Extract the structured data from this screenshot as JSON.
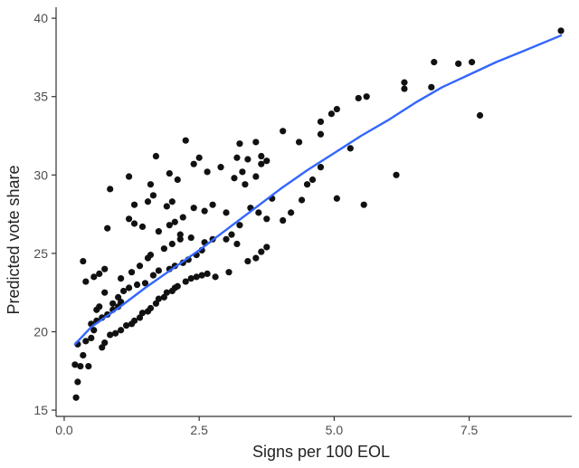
{
  "chart_data": {
    "type": "scatter",
    "xlabel": "Signs per 100 EOL",
    "ylabel": "Predicted vote share",
    "xlim": [
      -0.15,
      9.4
    ],
    "ylim": [
      14.6,
      40.7
    ],
    "x_ticks": [
      0.0,
      2.5,
      5.0,
      7.5
    ],
    "x_tick_labels": [
      "0.0",
      "2.5",
      "5.0",
      "7.5"
    ],
    "y_ticks": [
      15,
      20,
      25,
      30,
      35,
      40
    ],
    "y_tick_labels": [
      "15",
      "20",
      "25",
      "30",
      "35",
      "40"
    ],
    "grid": false,
    "legend": "none",
    "colors": {
      "points": "#111111",
      "trend": "#3366ff",
      "axis": "#333333"
    },
    "points": [
      [
        0.22,
        15.8
      ],
      [
        0.25,
        16.8
      ],
      [
        0.2,
        17.9
      ],
      [
        0.3,
        17.8
      ],
      [
        0.45,
        17.8
      ],
      [
        0.35,
        18.5
      ],
      [
        0.25,
        19.2
      ],
      [
        0.4,
        19.4
      ],
      [
        0.5,
        19.6
      ],
      [
        0.55,
        20.1
      ],
      [
        0.5,
        20.5
      ],
      [
        0.6,
        20.7
      ],
      [
        0.7,
        20.9
      ],
      [
        0.8,
        21.1
      ],
      [
        0.9,
        21.4
      ],
      [
        1.0,
        21.6
      ],
      [
        1.05,
        21.9
      ],
      [
        0.7,
        19.0
      ],
      [
        0.75,
        19.3
      ],
      [
        0.85,
        19.8
      ],
      [
        0.95,
        19.9
      ],
      [
        1.05,
        20.1
      ],
      [
        1.15,
        20.4
      ],
      [
        1.25,
        20.5
      ],
      [
        1.3,
        20.7
      ],
      [
        1.4,
        20.9
      ],
      [
        1.45,
        21.2
      ],
      [
        1.55,
        21.3
      ],
      [
        1.6,
        21.5
      ],
      [
        1.7,
        21.8
      ],
      [
        1.75,
        22.1
      ],
      [
        1.85,
        22.2
      ],
      [
        1.9,
        22.5
      ],
      [
        2.0,
        22.6
      ],
      [
        2.05,
        22.8
      ],
      [
        2.1,
        22.9
      ],
      [
        2.25,
        23.2
      ],
      [
        2.35,
        23.4
      ],
      [
        2.45,
        23.5
      ],
      [
        2.55,
        23.6
      ],
      [
        2.65,
        23.7
      ],
      [
        2.8,
        23.5
      ],
      [
        3.05,
        23.8
      ],
      [
        3.4,
        24.5
      ],
      [
        3.55,
        24.7
      ],
      [
        3.65,
        25.1
      ],
      [
        3.75,
        25.4
      ],
      [
        3.2,
        25.6
      ],
      [
        3.0,
        25.9
      ],
      [
        0.6,
        21.4
      ],
      [
        0.65,
        21.6
      ],
      [
        0.75,
        22.5
      ],
      [
        0.9,
        21.8
      ],
      [
        1.0,
        22.2
      ],
      [
        1.1,
        22.6
      ],
      [
        1.2,
        22.8
      ],
      [
        1.35,
        23.0
      ],
      [
        1.5,
        23.1
      ],
      [
        1.65,
        23.6
      ],
      [
        1.75,
        23.9
      ],
      [
        1.95,
        24.0
      ],
      [
        2.05,
        24.2
      ],
      [
        2.2,
        24.4
      ],
      [
        2.3,
        24.6
      ],
      [
        2.45,
        24.9
      ],
      [
        2.55,
        25.2
      ],
      [
        2.6,
        25.7
      ],
      [
        2.75,
        25.9
      ],
      [
        0.4,
        23.2
      ],
      [
        0.55,
        23.5
      ],
      [
        0.65,
        23.7
      ],
      [
        0.75,
        24.0
      ],
      [
        0.35,
        24.5
      ],
      [
        1.05,
        23.4
      ],
      [
        1.25,
        23.8
      ],
      [
        1.4,
        24.2
      ],
      [
        1.55,
        24.7
      ],
      [
        1.6,
        24.9
      ],
      [
        1.85,
        25.3
      ],
      [
        2.0,
        25.6
      ],
      [
        2.15,
        25.9
      ],
      [
        2.35,
        26.0
      ],
      [
        2.15,
        26.2
      ],
      [
        1.75,
        26.4
      ],
      [
        1.95,
        26.8
      ],
      [
        2.05,
        27.0
      ],
      [
        2.2,
        27.3
      ],
      [
        1.45,
        26.7
      ],
      [
        1.3,
        26.9
      ],
      [
        1.2,
        27.2
      ],
      [
        0.8,
        26.6
      ],
      [
        1.3,
        28.1
      ],
      [
        1.55,
        28.3
      ],
      [
        1.65,
        28.7
      ],
      [
        1.9,
        28.0
      ],
      [
        2.0,
        28.3
      ],
      [
        2.4,
        27.9
      ],
      [
        2.6,
        27.7
      ],
      [
        2.75,
        28.1
      ],
      [
        3.0,
        27.6
      ],
      [
        3.1,
        26.2
      ],
      [
        3.25,
        26.8
      ],
      [
        3.45,
        27.9
      ],
      [
        3.6,
        27.6
      ],
      [
        3.75,
        27.2
      ],
      [
        3.85,
        28.5
      ],
      [
        4.05,
        27.1
      ],
      [
        4.2,
        27.6
      ],
      [
        4.4,
        28.4
      ],
      [
        4.5,
        29.4
      ],
      [
        4.6,
        29.7
      ],
      [
        4.75,
        30.5
      ],
      [
        3.35,
        29.4
      ],
      [
        3.55,
        29.9
      ],
      [
        3.65,
        30.7
      ],
      [
        3.15,
        29.8
      ],
      [
        3.3,
        30.2
      ],
      [
        3.2,
        31.1
      ],
      [
        3.4,
        31.0
      ],
      [
        2.9,
        30.5
      ],
      [
        2.65,
        30.2
      ],
      [
        2.4,
        30.7
      ],
      [
        2.1,
        29.7
      ],
      [
        1.95,
        30.1
      ],
      [
        1.6,
        29.4
      ],
      [
        1.2,
        29.9
      ],
      [
        0.85,
        29.1
      ],
      [
        1.7,
        31.2
      ],
      [
        2.25,
        32.2
      ],
      [
        2.5,
        31.1
      ],
      [
        3.25,
        32.0
      ],
      [
        3.55,
        32.1
      ],
      [
        3.65,
        31.2
      ],
      [
        3.75,
        30.9
      ],
      [
        4.05,
        32.8
      ],
      [
        4.35,
        32.1
      ],
      [
        4.75,
        32.6
      ],
      [
        4.75,
        33.4
      ],
      [
        4.95,
        33.9
      ],
      [
        5.05,
        34.2
      ],
      [
        5.45,
        34.9
      ],
      [
        5.6,
        35.0
      ],
      [
        5.3,
        31.7
      ],
      [
        5.05,
        28.5
      ],
      [
        5.55,
        28.1
      ],
      [
        6.15,
        30.0
      ],
      [
        6.3,
        35.5
      ],
      [
        6.3,
        35.9
      ],
      [
        6.8,
        35.6
      ],
      [
        6.85,
        37.2
      ],
      [
        7.3,
        37.1
      ],
      [
        7.55,
        37.2
      ],
      [
        7.7,
        33.8
      ],
      [
        9.2,
        39.2
      ]
    ],
    "trend_line": [
      [
        0.2,
        19.2
      ],
      [
        0.5,
        20.3
      ],
      [
        1.0,
        21.5
      ],
      [
        1.5,
        22.8
      ],
      [
        2.0,
        24.0
      ],
      [
        2.5,
        25.2
      ],
      [
        3.0,
        26.5
      ],
      [
        3.5,
        27.8
      ],
      [
        4.0,
        29.1
      ],
      [
        4.5,
        30.3
      ],
      [
        5.0,
        31.4
      ],
      [
        5.5,
        32.5
      ],
      [
        6.0,
        33.5
      ],
      [
        6.5,
        34.6
      ],
      [
        7.0,
        35.6
      ],
      [
        7.5,
        36.4
      ],
      [
        8.0,
        37.2
      ],
      [
        8.5,
        37.9
      ],
      [
        9.2,
        38.9
      ]
    ]
  }
}
